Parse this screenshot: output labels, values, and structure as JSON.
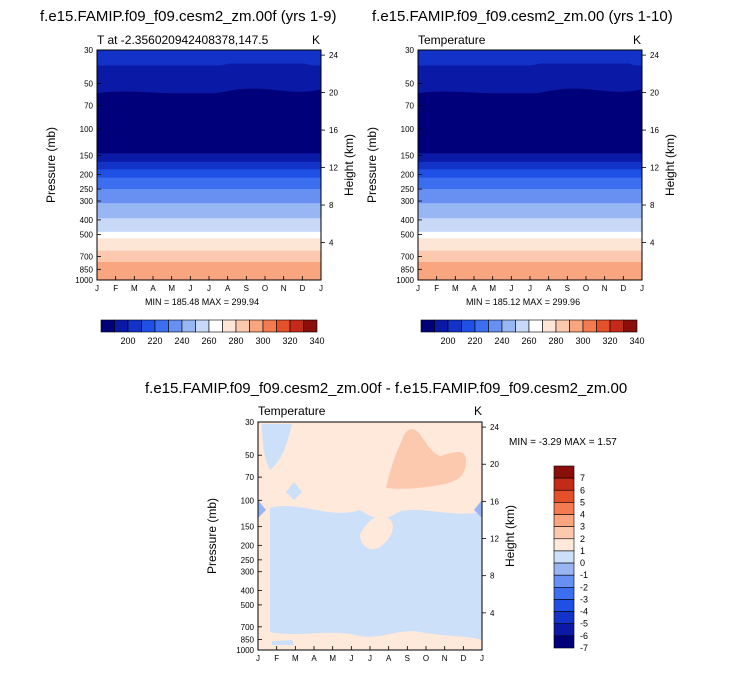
{
  "colors": {
    "temp_levels": [
      "#00007a",
      "#0a1aa6",
      "#1332c8",
      "#1e50e6",
      "#3c6ef0",
      "#6890f2",
      "#98b6f4",
      "#c8d9f8",
      "#ffffff",
      "#fde6d6",
      "#fcc9ae",
      "#f9a57f",
      "#f47a50",
      "#e4502a",
      "#c42a18",
      "#8a0e0a"
    ],
    "diff_levels": [
      "#00007a",
      "#0a1aa6",
      "#1332c8",
      "#1e50e6",
      "#3c6ef0",
      "#6890f2",
      "#98b6f4",
      "#cde0fa",
      "#ffe9da",
      "#fcc9ae",
      "#f9a57f",
      "#f47a50",
      "#e4502a",
      "#c42a18",
      "#8a0e0a"
    ]
  },
  "chart_data": [
    {
      "type": "heatmap",
      "title": "f.e15.FAMIP.f09_f09.cesm2_zm.00f (yrs 1-9)",
      "left_label": "T at -2.356020942408378,147.5",
      "right_label": "K",
      "xlabel": "",
      "ylabel": "Pressure (mb)",
      "y2label": "Height (km)",
      "x_ticks": [
        "J",
        "F",
        "M",
        "A",
        "M",
        "J",
        "J",
        "A",
        "S",
        "O",
        "N",
        "D",
        "J"
      ],
      "y_ticks": [
        "30",
        "50",
        "70",
        "100",
        "150",
        "200",
        "250",
        "300",
        "400",
        "500",
        "700",
        "850",
        "1000"
      ],
      "y2_ticks": [
        "24",
        "20",
        "16",
        "12",
        "8",
        "4"
      ],
      "stats": "MIN = 185.48 MAX = 299.94",
      "colorbar_labels": [
        "200",
        "220",
        "240",
        "260",
        "280",
        "300",
        "320",
        "340"
      ],
      "colorbar_levels": [
        190,
        200,
        210,
        220,
        230,
        240,
        250,
        260,
        270,
        280,
        290,
        300,
        310,
        320,
        330,
        340
      ]
    },
    {
      "type": "heatmap",
      "title": "f.e15.FAMIP.f09_f09.cesm2_zm.00 (yrs 1-10)",
      "left_label": "Temperature",
      "right_label": "K",
      "xlabel": "",
      "ylabel": "Pressure (mb)",
      "y2label": "Height (km)",
      "x_ticks": [
        "J",
        "F",
        "M",
        "A",
        "M",
        "J",
        "J",
        "A",
        "S",
        "O",
        "N",
        "D",
        "J"
      ],
      "y_ticks": [
        "30",
        "50",
        "70",
        "100",
        "150",
        "200",
        "250",
        "300",
        "400",
        "500",
        "700",
        "850",
        "1000"
      ],
      "y2_ticks": [
        "24",
        "20",
        "16",
        "12",
        "8",
        "4"
      ],
      "stats": "MIN = 185.12 MAX = 299.96",
      "colorbar_labels": [
        "200",
        "220",
        "240",
        "260",
        "280",
        "300",
        "320",
        "340"
      ],
      "colorbar_levels": [
        190,
        200,
        210,
        220,
        230,
        240,
        250,
        260,
        270,
        280,
        290,
        300,
        310,
        320,
        330,
        340
      ]
    },
    {
      "type": "heatmap",
      "title": "f.e15.FAMIP.f09_f09.cesm2_zm.00f - f.e15.FAMIP.f09_f09.cesm2_zm.00",
      "left_label": "Temperature",
      "right_label": "K",
      "xlabel": "",
      "ylabel": "Pressure (mb)",
      "y2label": "Height (km)",
      "x_ticks": [
        "J",
        "F",
        "M",
        "A",
        "M",
        "J",
        "J",
        "A",
        "S",
        "O",
        "N",
        "D",
        "J"
      ],
      "y_ticks": [
        "30",
        "50",
        "70",
        "100",
        "150",
        "200",
        "250",
        "300",
        "400",
        "500",
        "700",
        "850",
        "1000"
      ],
      "y2_ticks": [
        "24",
        "20",
        "16",
        "12",
        "8",
        "4"
      ],
      "stats": "MIN =  -3.29 MAX =   1.57",
      "colorbar_labels": [
        "7",
        "6",
        "5",
        "4",
        "3",
        "2",
        "1",
        "0",
        "-1",
        "-2",
        "-3",
        "-4",
        "-5",
        "-6",
        "-7"
      ],
      "colorbar_levels": [
        -8,
        -7,
        -6,
        -5,
        -4,
        -3,
        -2,
        -1,
        0,
        1,
        2,
        3,
        4,
        5,
        6,
        7
      ]
    }
  ]
}
